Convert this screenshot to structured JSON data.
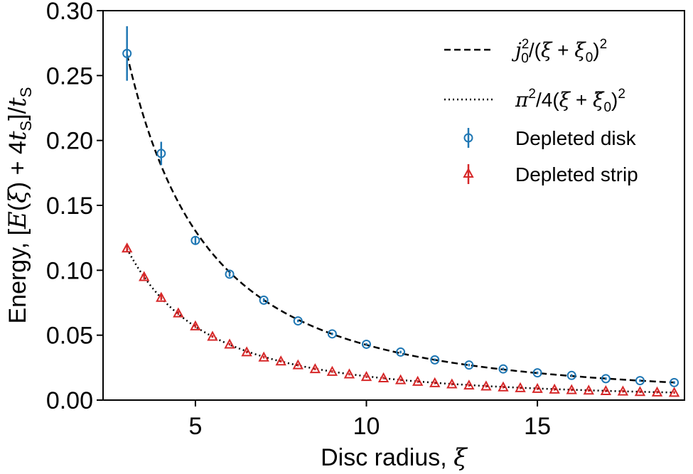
{
  "chart_data": {
    "type": "scatter",
    "xlabel": {
      "text": "Disc radius, ",
      "symbol": "ξ"
    },
    "ylabel": {
      "prefix": "Energy, [",
      "e": "E",
      "open": "(",
      "xi": "ξ",
      "mid": ") + 4",
      "t": "t",
      "s": "S",
      "close": "]/",
      "t2": "t",
      "s2": "S"
    },
    "xlim": [
      2.3,
      19.3
    ],
    "ylim": [
      0.0,
      0.3
    ],
    "xticks": [
      5,
      10,
      15
    ],
    "xtick_labels": [
      "5",
      "10",
      "15"
    ],
    "yticks": [
      0.0,
      0.05,
      0.1,
      0.15,
      0.2,
      0.25,
      0.3
    ],
    "ytick_labels": [
      "0.00",
      "0.05",
      "0.10",
      "0.15",
      "0.20",
      "0.25",
      "0.30"
    ],
    "legend_position": "top-right",
    "legend": {
      "dashed": {
        "j": "j",
        "sup": "2",
        "sub": "0",
        "mid": "/(",
        "xi": "ξ",
        "plus": " + ",
        "xi0": "ξ",
        "sub2": "0",
        "end": ")",
        "sup2": "2"
      },
      "dotted": {
        "pi": "π",
        "sup": "2",
        "mid": "/4(",
        "xi": "ξ",
        "plus": " + ",
        "xi0": "ξ̃",
        "sub": "0",
        "end": ")",
        "sup2": "2"
      },
      "disk": "Depleted disk",
      "strip": "Depleted strip"
    },
    "colors": {
      "disk": "#1f77b4",
      "strip": "#d62728",
      "fit": "#000000"
    },
    "series": [
      {
        "name": "Depleted disk",
        "marker": "circle",
        "x": [
          3,
          4,
          5,
          6,
          7,
          8,
          9,
          10,
          11,
          12,
          13,
          14,
          15,
          16,
          17,
          18,
          19
        ],
        "y": [
          0.267,
          0.19,
          0.123,
          0.097,
          0.077,
          0.061,
          0.051,
          0.043,
          0.037,
          0.031,
          0.027,
          0.024,
          0.021,
          0.019,
          0.0165,
          0.015,
          0.0135
        ],
        "yerr": [
          0.021,
          0.009,
          0.003,
          0.002,
          0.0015,
          0.001,
          0.001,
          0.001,
          0.001,
          0.001,
          0.001,
          0.001,
          0.001,
          0.001,
          0.001,
          0.001,
          0.001
        ]
      },
      {
        "name": "Depleted strip",
        "marker": "triangle",
        "x": [
          3,
          3.5,
          4,
          4.5,
          5,
          5.5,
          6,
          6.5,
          7,
          7.5,
          8,
          8.5,
          9,
          9.5,
          10,
          10.5,
          11,
          11.5,
          12,
          12.5,
          13,
          13.5,
          14,
          14.5,
          15,
          15.5,
          16,
          16.5,
          17,
          17.5,
          18,
          18.5,
          19
        ],
        "y": [
          0.117,
          0.095,
          0.079,
          0.067,
          0.057,
          0.049,
          0.043,
          0.037,
          0.033,
          0.03,
          0.027,
          0.024,
          0.022,
          0.02,
          0.018,
          0.017,
          0.0155,
          0.0143,
          0.0132,
          0.0123,
          0.0114,
          0.0107,
          0.01,
          0.0094,
          0.0088,
          0.0083,
          0.0079,
          0.0075,
          0.0071,
          0.0068,
          0.0064,
          0.0061,
          0.0058
        ],
        "yerr": [
          0.003,
          0.002,
          0.002,
          0.0015,
          0.0015,
          0.001,
          0.001,
          0.001,
          0.001,
          0.001,
          0.001,
          0.001,
          0.001,
          0.001,
          0.001,
          0.001,
          0.001,
          0.001,
          0.001,
          0.001,
          0.001,
          0.001,
          0.001,
          0.001,
          0.001,
          0.001,
          0.001,
          0.001,
          0.001,
          0.001,
          0.001,
          0.001,
          0.001
        ]
      }
    ],
    "fits": [
      {
        "name": "dashed-fit",
        "style": "dashed",
        "k": 5.783,
        "x0": 1.66,
        "x": [
          3,
          19
        ]
      },
      {
        "name": "dotted-fit",
        "style": "dotted",
        "k": 2.467,
        "x0": 1.6,
        "x": [
          3,
          19
        ]
      }
    ]
  }
}
